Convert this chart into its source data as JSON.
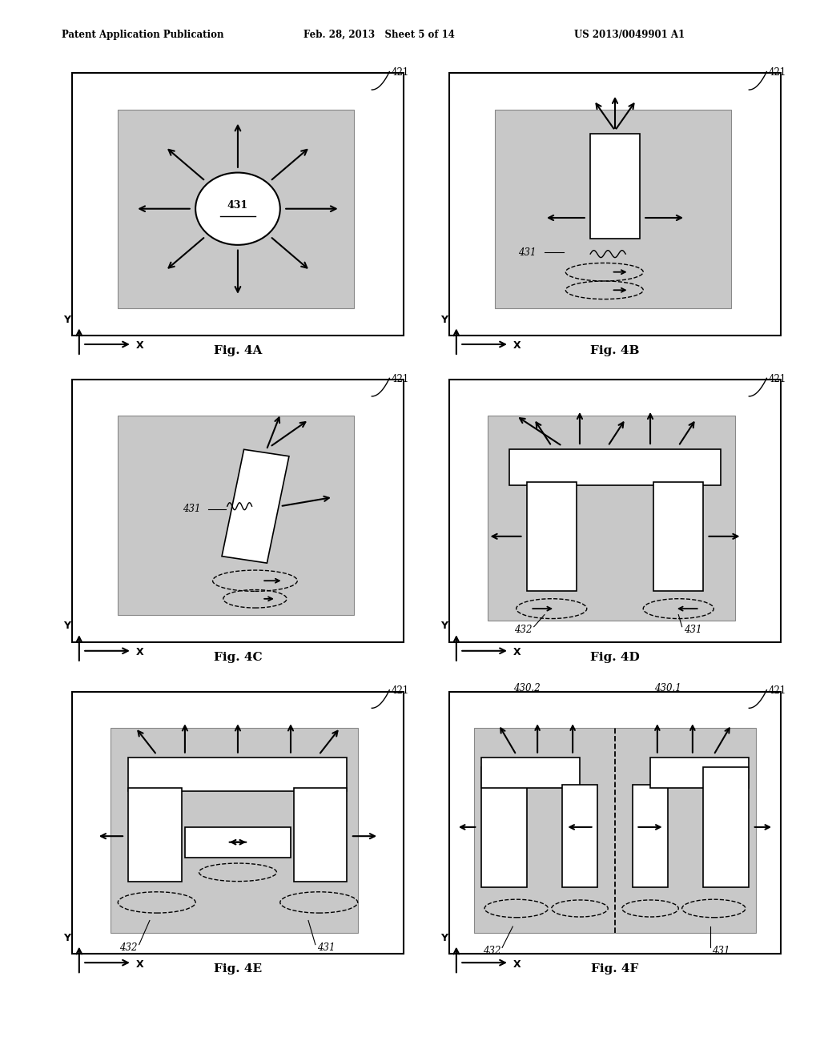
{
  "header_left": "Patent Application Publication",
  "header_mid": "Feb. 28, 2013   Sheet 5 of 14",
  "header_right": "US 2013/0049901 A1",
  "bg_color": "#ffffff",
  "gray_color": "#c8c8c8",
  "fig_labels": [
    "Fig. 4A",
    "Fig. 4B",
    "Fig. 4C",
    "Fig. 4D",
    "Fig. 4E",
    "Fig. 4F"
  ]
}
